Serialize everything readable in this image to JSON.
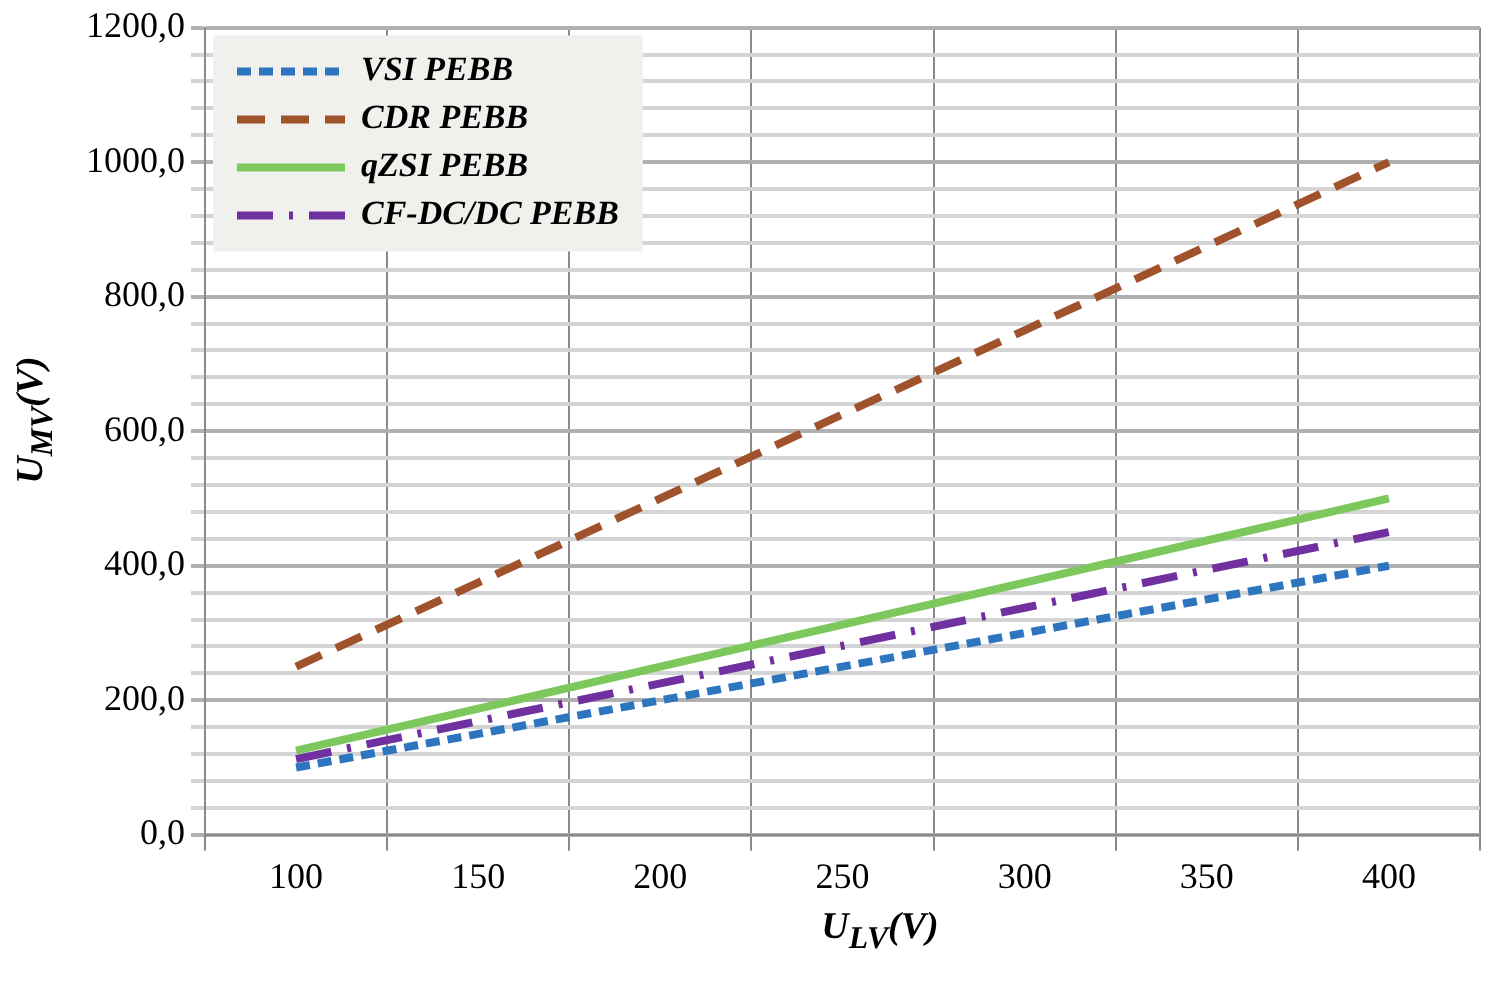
{
  "chart_data": {
    "type": "line",
    "xlabel": "U$_{LV}$(V)",
    "ylabel": "U$_{MV}$(V)",
    "categories": [
      "100",
      "150",
      "200",
      "250",
      "300",
      "350",
      "400"
    ],
    "series": [
      {
        "name": "VSI PEBB",
        "color": "#2e75c0",
        "line_style": "dotted",
        "values": [
          100,
          150,
          200,
          250,
          300,
          350,
          400
        ]
      },
      {
        "name": "CDR PEBB",
        "color": "#a0522d",
        "line_style": "dashed",
        "values": [
          250,
          375,
          500,
          625,
          750,
          875,
          1000
        ]
      },
      {
        "name": "qZSI PEBB",
        "color": "#7cc85c",
        "line_style": "solid",
        "values": [
          125,
          187.5,
          250,
          312.5,
          375,
          437.5,
          500
        ]
      },
      {
        "name": "CF-DC/DC PEBB",
        "color": "#7030a0",
        "line_style": "dashdot",
        "values": [
          112.5,
          169,
          225,
          281,
          337.5,
          394,
          450
        ]
      }
    ],
    "ylim": [
      0,
      1200
    ],
    "yticks": [
      {
        "value": 0,
        "label": "0,0"
      },
      {
        "value": 40,
        "label": null
      },
      {
        "value": 80,
        "label": null
      },
      {
        "value": 120,
        "label": null
      },
      {
        "value": 160,
        "label": null
      },
      {
        "value": 200,
        "label": "200,0"
      },
      {
        "value": 240,
        "label": null
      },
      {
        "value": 280,
        "label": null
      },
      {
        "value": 320,
        "label": null
      },
      {
        "value": 360,
        "label": null
      },
      {
        "value": 400,
        "label": "400,0"
      },
      {
        "value": 440,
        "label": null
      },
      {
        "value": 480,
        "label": null
      },
      {
        "value": 520,
        "label": null
      },
      {
        "value": 560,
        "label": null
      },
      {
        "value": 600,
        "label": "600,0"
      },
      {
        "value": 640,
        "label": null
      },
      {
        "value": 680,
        "label": null
      },
      {
        "value": 720,
        "label": null
      },
      {
        "value": 760,
        "label": null
      },
      {
        "value": 800,
        "label": "800,0"
      },
      {
        "value": 840,
        "label": null
      },
      {
        "value": 880,
        "label": null
      },
      {
        "value": 920,
        "label": null
      },
      {
        "value": 960,
        "label": null
      },
      {
        "value": 1000,
        "label": "1000,0"
      },
      {
        "value": 1040,
        "label": null
      },
      {
        "value": 1080,
        "label": null
      },
      {
        "value": 1120,
        "label": null
      },
      {
        "value": 1160,
        "label": null
      },
      {
        "value": 1200,
        "label": "1200,0"
      }
    ],
    "grid": true,
    "legend": "top left",
    "marker": "none"
  }
}
